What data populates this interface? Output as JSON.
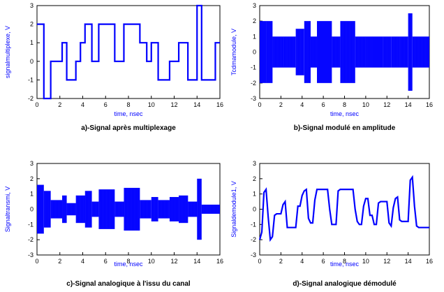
{
  "colors": {
    "trace": "#0000ff",
    "axis": "#000000",
    "label": "#0000ff"
  },
  "chart_data": [
    {
      "type": "line",
      "name": "a",
      "title": "a)-Signal après multiplexage",
      "xlabel": "time, nsec",
      "ylabel": "signalmultiplexe, V",
      "xlim": [
        0,
        16
      ],
      "ylim": [
        -2,
        3
      ],
      "xticks": [
        "0",
        "2",
        "4",
        "6",
        "8",
        "10",
        "12",
        "14",
        "16"
      ],
      "yticks": [
        "-2",
        "-1",
        "0",
        "1",
        "2",
        "3"
      ],
      "grid": false,
      "step": true,
      "series": [
        {
          "x": [
            0,
            0.6,
            1.2,
            2.2,
            2.6,
            3.4,
            3.8,
            4.2,
            4.8,
            5.4,
            6.8,
            7.6,
            9.0,
            9.6,
            10.0,
            10.6,
            11.6,
            12.4,
            13.2,
            14.0,
            14.4,
            15.6,
            16.0
          ],
          "y": [
            2,
            -2,
            0,
            1,
            -1,
            0,
            1,
            2,
            0,
            2,
            0,
            2,
            1,
            0,
            1,
            -1,
            0,
            1,
            -1,
            3,
            -1,
            1,
            1
          ]
        }
      ]
    },
    {
      "type": "line",
      "name": "b",
      "title": "b)-Signal modulé en amplitude",
      "xlabel": "time, nsec",
      "ylabel": "Tcdmamodule, V",
      "xlim": [
        0,
        16
      ],
      "ylim": [
        -3,
        3
      ],
      "xticks": [
        "0",
        "2",
        "4",
        "6",
        "8",
        "10",
        "12",
        "14",
        "16"
      ],
      "yticks": [
        "-3",
        "-2",
        "-1",
        "0",
        "1",
        "2",
        "3"
      ],
      "grid": false,
      "step": false,
      "envelope_segments": [
        {
          "x0": 0.0,
          "x1": 0.6,
          "amp": 2.0
        },
        {
          "x0": 0.6,
          "x1": 1.2,
          "amp": 2.0
        },
        {
          "x0": 1.2,
          "x1": 2.2,
          "amp": 1.0
        },
        {
          "x0": 2.2,
          "x1": 2.6,
          "amp": 1.0
        },
        {
          "x0": 2.6,
          "x1": 3.4,
          "amp": 1.0
        },
        {
          "x0": 3.4,
          "x1": 4.2,
          "amp": 1.5
        },
        {
          "x0": 4.2,
          "x1": 4.8,
          "amp": 2.0
        },
        {
          "x0": 4.8,
          "x1": 5.4,
          "amp": 1.0
        },
        {
          "x0": 5.4,
          "x1": 6.8,
          "amp": 2.0
        },
        {
          "x0": 6.8,
          "x1": 7.6,
          "amp": 1.0
        },
        {
          "x0": 7.6,
          "x1": 9.0,
          "amp": 2.0
        },
        {
          "x0": 9.0,
          "x1": 10.0,
          "amp": 1.0
        },
        {
          "x0": 10.0,
          "x1": 10.6,
          "amp": 1.0
        },
        {
          "x0": 10.6,
          "x1": 11.6,
          "amp": 1.0
        },
        {
          "x0": 11.6,
          "x1": 12.4,
          "amp": 1.0
        },
        {
          "x0": 12.4,
          "x1": 13.2,
          "amp": 1.0
        },
        {
          "x0": 13.2,
          "x1": 14.0,
          "amp": 1.0
        },
        {
          "x0": 14.0,
          "x1": 14.4,
          "amp": 2.5
        },
        {
          "x0": 14.4,
          "x1": 16.0,
          "amp": 1.0
        }
      ]
    },
    {
      "type": "line",
      "name": "c",
      "title": "c)-Signal analogique à l'issu du canal",
      "xlabel": "time, nsec",
      "ylabel": "Signaltransmi, V",
      "xlim": [
        0,
        16
      ],
      "ylim": [
        -3,
        3
      ],
      "xticks": [
        "0",
        "2",
        "4",
        "6",
        "8",
        "10",
        "12",
        "14",
        "16"
      ],
      "yticks": [
        "-3",
        "-2",
        "-1",
        "0",
        "1",
        "2",
        "3"
      ],
      "grid": false,
      "step": false,
      "envelope_segments": [
        {
          "x0": 0.0,
          "x1": 0.6,
          "amp": 1.6
        },
        {
          "x0": 0.6,
          "x1": 1.2,
          "amp": 1.2
        },
        {
          "x0": 1.2,
          "x1": 2.2,
          "amp": 0.6
        },
        {
          "x0": 2.2,
          "x1": 2.6,
          "amp": 0.9
        },
        {
          "x0": 2.6,
          "x1": 3.4,
          "amp": 0.4
        },
        {
          "x0": 3.4,
          "x1": 4.2,
          "amp": 0.9
        },
        {
          "x0": 4.2,
          "x1": 4.8,
          "amp": 1.2
        },
        {
          "x0": 4.8,
          "x1": 5.4,
          "amp": 0.5
        },
        {
          "x0": 5.4,
          "x1": 6.8,
          "amp": 1.3
        },
        {
          "x0": 6.8,
          "x1": 7.6,
          "amp": 0.5
        },
        {
          "x0": 7.6,
          "x1": 9.0,
          "amp": 1.4
        },
        {
          "x0": 9.0,
          "x1": 10.0,
          "amp": 0.6
        },
        {
          "x0": 10.0,
          "x1": 10.6,
          "amp": 0.8
        },
        {
          "x0": 10.6,
          "x1": 11.6,
          "amp": 0.6
        },
        {
          "x0": 11.6,
          "x1": 12.4,
          "amp": 0.8
        },
        {
          "x0": 12.4,
          "x1": 13.2,
          "amp": 0.9
        },
        {
          "x0": 13.2,
          "x1": 14.0,
          "amp": 0.5
        },
        {
          "x0": 14.0,
          "x1": 14.4,
          "amp": 2.0
        },
        {
          "x0": 14.4,
          "x1": 16.0,
          "amp": 0.3
        }
      ]
    },
    {
      "type": "line",
      "name": "d",
      "title": "d)-Signal analogique démodulé",
      "xlabel": "time, nsec",
      "ylabel": "Signaldemodule1, V",
      "xlim": [
        0,
        16
      ],
      "ylim": [
        -3,
        3
      ],
      "xticks": [
        "0",
        "2",
        "4",
        "6",
        "8",
        "10",
        "12",
        "14",
        "16"
      ],
      "yticks": [
        "-3",
        "-2",
        "-1",
        "0",
        "1",
        "2",
        "3"
      ],
      "grid": false,
      "step": false,
      "series": [
        {
          "x": [
            0.0,
            0.2,
            0.4,
            0.6,
            0.8,
            1.0,
            1.2,
            1.4,
            1.6,
            1.8,
            2.0,
            2.2,
            2.4,
            2.6,
            2.8,
            3.0,
            3.2,
            3.4,
            3.6,
            3.8,
            4.0,
            4.2,
            4.4,
            4.6,
            4.8,
            5.0,
            5.2,
            5.4,
            5.6,
            5.8,
            6.0,
            6.2,
            6.4,
            6.6,
            6.8,
            7.0,
            7.2,
            7.4,
            7.6,
            7.8,
            8.0,
            8.2,
            8.4,
            8.6,
            8.8,
            9.0,
            9.2,
            9.4,
            9.6,
            9.8,
            10.0,
            10.2,
            10.4,
            10.6,
            10.8,
            11.0,
            11.2,
            11.4,
            11.6,
            11.8,
            12.0,
            12.2,
            12.4,
            12.6,
            12.8,
            13.0,
            13.2,
            13.4,
            13.6,
            13.8,
            14.0,
            14.2,
            14.4,
            14.6,
            14.8,
            15.0,
            15.2,
            15.4,
            15.6,
            15.8,
            16.0
          ],
          "y": [
            -2.0,
            -1.5,
            1.1,
            1.3,
            -0.5,
            -2.0,
            -1.8,
            -0.4,
            -0.3,
            -0.3,
            -0.3,
            0.3,
            0.5,
            -1.2,
            -1.2,
            -1.2,
            -1.2,
            -1.2,
            0.2,
            0.2,
            0.9,
            1.2,
            1.3,
            -0.6,
            -0.9,
            -0.9,
            0.6,
            1.3,
            1.3,
            1.3,
            1.3,
            1.3,
            1.3,
            0.0,
            -1.0,
            -1.0,
            -1.0,
            1.2,
            1.3,
            1.3,
            1.3,
            1.3,
            1.3,
            1.3,
            1.3,
            0.0,
            -0.8,
            -1.0,
            -1.0,
            0.2,
            0.7,
            0.7,
            -0.4,
            -0.4,
            -1.0,
            -1.0,
            0.4,
            0.5,
            0.5,
            0.5,
            0.5,
            -0.9,
            -1.1,
            0.1,
            0.7,
            0.8,
            -0.7,
            -0.8,
            -0.8,
            -0.8,
            -0.8,
            1.9,
            2.1,
            0.2,
            -1.1,
            -1.2,
            -1.2,
            -1.2,
            -1.2,
            -1.2,
            -1.2
          ]
        }
      ]
    }
  ]
}
